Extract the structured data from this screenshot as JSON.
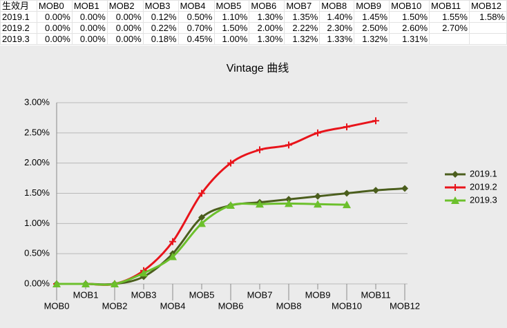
{
  "table": {
    "header": [
      "生效月",
      "MOB0",
      "MOB1",
      "MOB2",
      "MOB3",
      "MOB4",
      "MOB5",
      "MOB6",
      "MOB7",
      "MOB8",
      "MOB9",
      "MOB10",
      "MOB11",
      "MOB12"
    ],
    "rows": [
      [
        "2019.1",
        "0.00%",
        "0.00%",
        "0.00%",
        "0.12%",
        "0.50%",
        "1.10%",
        "1.30%",
        "1.35%",
        "1.40%",
        "1.45%",
        "1.50%",
        "1.55%",
        "1.58%"
      ],
      [
        "2019.2",
        "0.00%",
        "0.00%",
        "0.00%",
        "0.22%",
        "0.70%",
        "1.50%",
        "2.00%",
        "2.22%",
        "2.30%",
        "2.50%",
        "2.60%",
        "2.70%"
      ],
      [
        "2019.3",
        "0.00%",
        "0.00%",
        "0.00%",
        "0.18%",
        "0.45%",
        "1.00%",
        "1.30%",
        "1.32%",
        "1.33%",
        "1.32%",
        "1.31%"
      ]
    ]
  },
  "chart_data": {
    "type": "line",
    "title": "Vintage 曲线",
    "categories": [
      "MOB0",
      "MOB1",
      "MOB2",
      "MOB3",
      "MOB4",
      "MOB5",
      "MOB6",
      "MOB7",
      "MOB8",
      "MOB9",
      "MOB10",
      "MOB11",
      "MOB12"
    ],
    "series": [
      {
        "name": "2019.1",
        "color": "#4b5e1d",
        "marker": "diamond",
        "values": [
          0,
          0,
          0,
          0.12,
          0.5,
          1.1,
          1.3,
          1.35,
          1.4,
          1.45,
          1.5,
          1.55,
          1.58
        ]
      },
      {
        "name": "2019.2",
        "color": "#e8141b",
        "marker": "plus",
        "values": [
          0,
          0,
          0,
          0.22,
          0.7,
          1.5,
          2.0,
          2.22,
          2.3,
          2.5,
          2.6,
          2.7,
          null
        ]
      },
      {
        "name": "2019.3",
        "color": "#6cc02c",
        "marker": "triangle",
        "values": [
          0,
          0,
          0,
          0.18,
          0.45,
          1.0,
          1.3,
          1.32,
          1.33,
          1.32,
          1.31,
          null,
          null
        ]
      }
    ],
    "ylim": [
      0,
      3
    ],
    "yticks": [
      {
        "value": 0,
        "label": "0.00%"
      },
      {
        "value": 0.5,
        "label": "0.50%"
      },
      {
        "value": 1,
        "label": "1.00%"
      },
      {
        "value": 1.5,
        "label": "1.50%"
      },
      {
        "value": 2,
        "label": "2.00%"
      },
      {
        "value": 2.5,
        "label": "2.50%"
      },
      {
        "value": 3,
        "label": "3.00%"
      }
    ],
    "grid": true,
    "smooth": true,
    "legend": "right"
  }
}
